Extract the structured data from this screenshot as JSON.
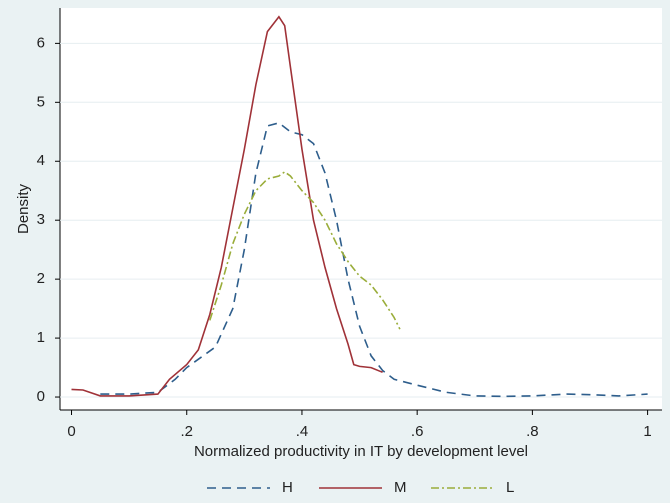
{
  "chart_data": {
    "type": "line",
    "x_label": "Normalized productivity in IT by development level",
    "y_label": "Density",
    "xlim": [
      -0.02,
      1.025
    ],
    "ylim": [
      -0.22,
      6.6
    ],
    "xticks": [
      {
        "value": 0,
        "label": "0"
      },
      {
        "value": 0.2,
        "label": ".2"
      },
      {
        "value": 0.4,
        "label": ".4"
      },
      {
        "value": 0.6,
        "label": ".6"
      },
      {
        "value": 0.8,
        "label": ".8"
      },
      {
        "value": 1,
        "label": "1"
      }
    ],
    "yticks": [
      0,
      1,
      2,
      3,
      4,
      5,
      6
    ],
    "grid": true,
    "legend": "bottom",
    "series": [
      {
        "name": "H",
        "color": "#2e5e8c",
        "style": "dash",
        "x": [
          0.05,
          0.1,
          0.15,
          0.18,
          0.2,
          0.25,
          0.28,
          0.3,
          0.32,
          0.34,
          0.36,
          0.38,
          0.4,
          0.42,
          0.44,
          0.46,
          0.48,
          0.5,
          0.52,
          0.54,
          0.56,
          0.6,
          0.65,
          0.7,
          0.75,
          0.8,
          0.86,
          0.9,
          0.95,
          1.0
        ],
        "values": [
          0.05,
          0.05,
          0.08,
          0.3,
          0.5,
          0.85,
          1.5,
          2.5,
          3.8,
          4.6,
          4.65,
          4.5,
          4.45,
          4.3,
          3.8,
          3.0,
          2.0,
          1.2,
          0.7,
          0.45,
          0.3,
          0.2,
          0.08,
          0.02,
          0.01,
          0.02,
          0.05,
          0.04,
          0.02,
          0.05
        ]
      },
      {
        "name": "M",
        "color": "#a03238",
        "style": "solid",
        "x": [
          0,
          0.02,
          0.05,
          0.1,
          0.15,
          0.17,
          0.2,
          0.22,
          0.24,
          0.26,
          0.28,
          0.3,
          0.32,
          0.34,
          0.36,
          0.37,
          0.38,
          0.4,
          0.42,
          0.44,
          0.46,
          0.48,
          0.49,
          0.5,
          0.52,
          0.54
        ],
        "values": [
          0.13,
          0.12,
          0.02,
          0.02,
          0.05,
          0.3,
          0.55,
          0.8,
          1.4,
          2.2,
          3.2,
          4.2,
          5.3,
          6.2,
          6.45,
          6.3,
          5.6,
          4.2,
          3.0,
          2.2,
          1.5,
          0.9,
          0.55,
          0.52,
          0.5,
          0.42
        ]
      },
      {
        "name": "L",
        "color": "#9aad3a",
        "style": "dashdot",
        "x": [
          0.24,
          0.26,
          0.28,
          0.3,
          0.32,
          0.34,
          0.36,
          0.37,
          0.38,
          0.4,
          0.42,
          0.44,
          0.46,
          0.48,
          0.5,
          0.52,
          0.54,
          0.56,
          0.57
        ],
        "values": [
          1.3,
          1.9,
          2.6,
          3.1,
          3.5,
          3.7,
          3.75,
          3.82,
          3.75,
          3.5,
          3.3,
          3.0,
          2.6,
          2.3,
          2.05,
          1.9,
          1.65,
          1.35,
          1.15
        ]
      }
    ]
  }
}
